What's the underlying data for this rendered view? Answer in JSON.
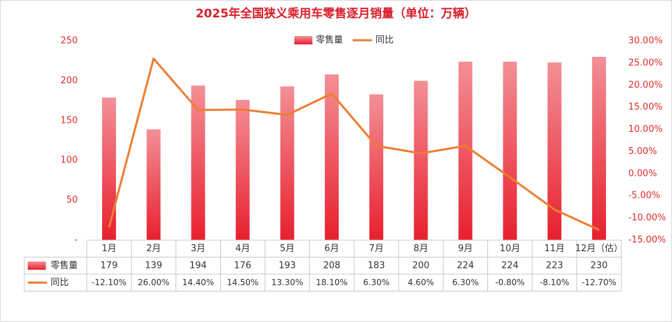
{
  "chart_data": {
    "type": "bar_line",
    "title": "2025年全国狭义乘用车零售逐月销量（单位：万辆）",
    "categories": [
      "1月",
      "2月",
      "3月",
      "4月",
      "5月",
      "6月",
      "7月",
      "8月",
      "9月",
      "10月",
      "11月",
      "12月（估）"
    ],
    "series": [
      {
        "name": "零售量",
        "type": "bar",
        "color": "#e8202e",
        "values": [
          179,
          139,
          194,
          176,
          193,
          208,
          183,
          200,
          224,
          224,
          223,
          230
        ]
      },
      {
        "name": "同比",
        "type": "line",
        "axis": "y2",
        "color": "#ed7d31",
        "values": [
          -12.1,
          26.0,
          14.4,
          14.5,
          13.3,
          18.1,
          6.3,
          4.6,
          6.3,
          -0.8,
          -8.1,
          -12.7
        ],
        "value_labels": [
          "-12.10%",
          "26.00%",
          "14.40%",
          "14.50%",
          "13.30%",
          "18.10%",
          "6.30%",
          "4.60%",
          "6.30%",
          "-0.80%",
          "-8.10%",
          "-12.70%"
        ]
      }
    ],
    "ylim": [
      0,
      250
    ],
    "yticks": [
      {
        "value": 0,
        "label": "-"
      },
      50,
      100,
      150,
      200,
      250
    ],
    "y2lim": [
      -15,
      30
    ],
    "y2ticks": [
      {
        "value": -15,
        "label": "-15.00%"
      },
      {
        "value": -10,
        "label": "-10.00%"
      },
      {
        "value": -5,
        "label": "-5.00%"
      },
      {
        "value": 0,
        "label": "0.00%"
      },
      {
        "value": 5,
        "label": "5.00%"
      },
      {
        "value": 10,
        "label": "10.00%"
      },
      {
        "value": 15,
        "label": "15.00%"
      },
      {
        "value": 20,
        "label": "20.00%"
      },
      {
        "value": 25,
        "label": "25.00%"
      },
      {
        "value": 30,
        "label": "30.00%"
      }
    ],
    "legend": "top",
    "data_table": true
  }
}
